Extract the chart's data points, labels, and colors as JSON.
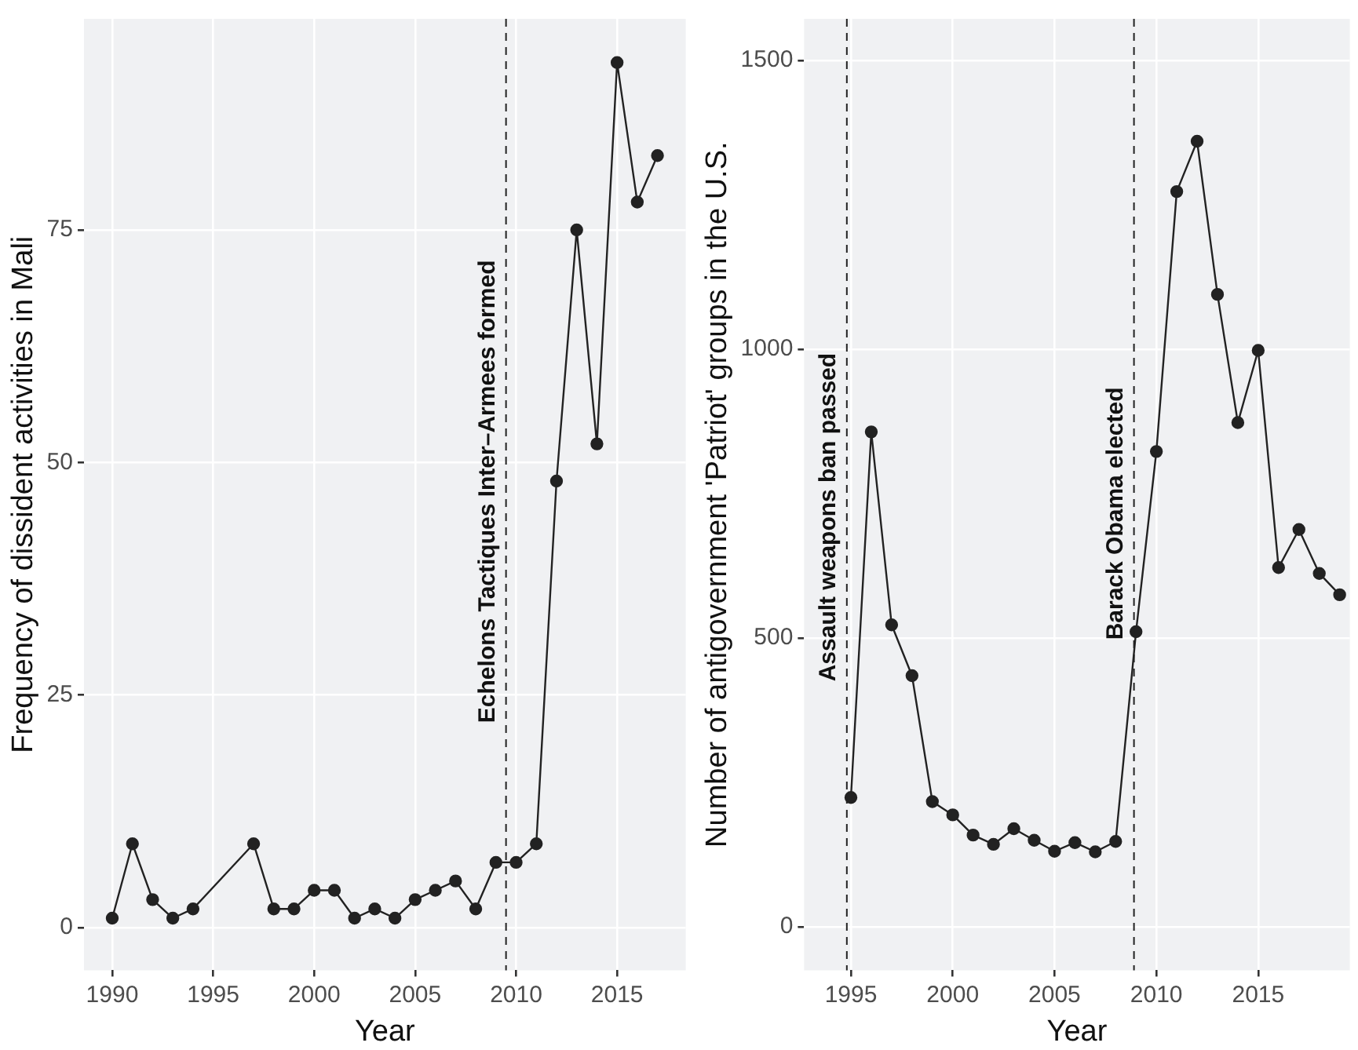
{
  "chart_data": [
    {
      "type": "line",
      "xlabel": "Year",
      "ylabel": "Frequency of dissident activities in Mali",
      "x": [
        1990,
        1991,
        1992,
        1993,
        1994,
        1997,
        1998,
        1999,
        2000,
        2001,
        2002,
        2003,
        2004,
        2005,
        2006,
        2007,
        2008,
        2009,
        2010,
        2011,
        2012,
        2013,
        2014,
        2015,
        2016,
        2017
      ],
      "series": [
        {
          "color": "#222222",
          "values": [
            1,
            9,
            3,
            1,
            2,
            9,
            2,
            2,
            4,
            4,
            1,
            2,
            1,
            3,
            4,
            5,
            2,
            7,
            7,
            9,
            48,
            75,
            52,
            93,
            78,
            83
          ]
        }
      ],
      "xlim": [
        1988.6,
        2018.4
      ],
      "xticks": [
        1990,
        1995,
        2000,
        2005,
        2010,
        2015
      ],
      "ylim": [
        -4.6,
        97.7
      ],
      "yticks": [
        0,
        25,
        50,
        75
      ],
      "grid": true,
      "legend": false,
      "marker": "circle",
      "line_style": "solid",
      "ref_lines": [
        {
          "axis": "x",
          "value": 2009.5,
          "color": "#222222",
          "line_style": "dashed"
        }
      ],
      "annotations": [
        {
          "text": "Echelons Tactiques Inter–Armees formed",
          "x": 2009.5,
          "y": 22
        }
      ]
    },
    {
      "type": "line",
      "xlabel": "Year",
      "ylabel": "Number of antigovernment 'Patriot' groups in the U.S.",
      "x": [
        1995,
        1996,
        1997,
        1998,
        1999,
        2000,
        2001,
        2002,
        2003,
        2004,
        2005,
        2006,
        2007,
        2008,
        2009,
        2010,
        2011,
        2012,
        2013,
        2014,
        2015,
        2016,
        2017,
        2018,
        2019
      ],
      "series": [
        {
          "color": "#222222",
          "values": [
            224,
            857,
            523,
            435,
            217,
            194,
            159,
            143,
            170,
            150,
            131,
            146,
            130,
            148,
            511,
            823,
            1273,
            1360,
            1095,
            873,
            998,
            622,
            688,
            612,
            575
          ]
        }
      ],
      "xlim": [
        1992.7,
        2019.5
      ],
      "xticks": [
        1995,
        2000,
        2005,
        2010,
        2015
      ],
      "ylim": [
        -75,
        1572
      ],
      "yticks": [
        0,
        500,
        1000,
        1500
      ],
      "grid": true,
      "legend": false,
      "marker": "circle",
      "line_style": "solid",
      "ref_lines": [
        {
          "axis": "x",
          "value": 1994.8,
          "color": "#222222",
          "line_style": "dashed"
        },
        {
          "axis": "x",
          "value": 2008.9,
          "color": "#222222",
          "line_style": "dashed"
        }
      ],
      "annotations": [
        {
          "text": "Assault weapons ban passed",
          "x": 1994.8,
          "y": 425
        },
        {
          "text": "Barack Obama elected",
          "x": 2008.9,
          "y": 497
        }
      ]
    }
  ]
}
